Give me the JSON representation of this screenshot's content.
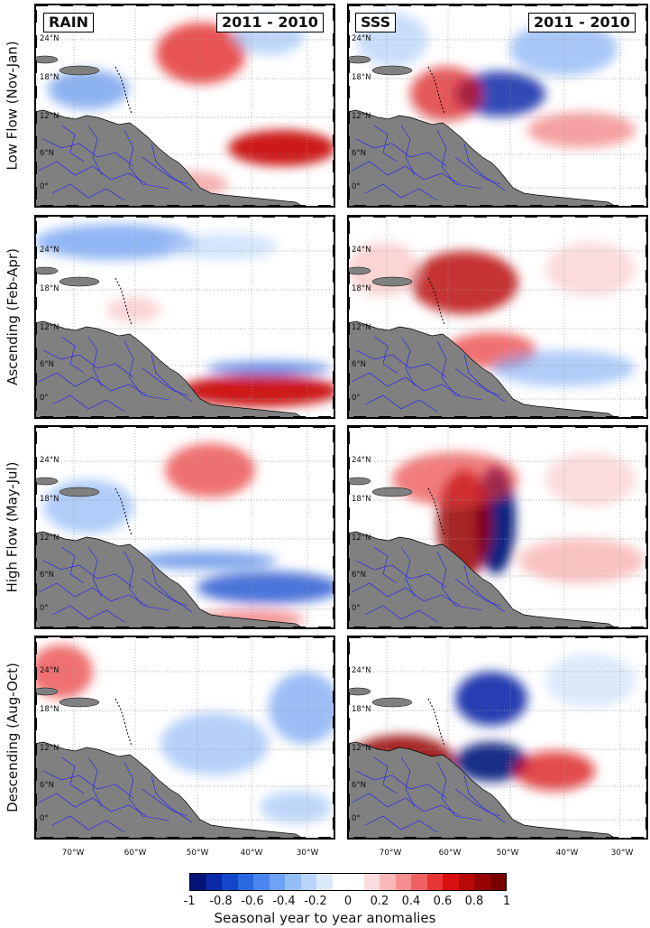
{
  "rows": [
    {
      "label": "Low Flow (Nov-Jan)"
    },
    {
      "label": "Ascending (Feb-Apr)"
    },
    {
      "label": "High Flow (May-Jul)"
    },
    {
      "label": "Descending (Aug-Oct)"
    }
  ],
  "titles": {
    "rain": "RAIN",
    "sss": "SSS",
    "period": "2011 - 2010"
  },
  "lat_labels": [
    "24°N",
    "18°N",
    "12°N",
    "6°N",
    "0°"
  ],
  "lon_labels": [
    "70°W",
    "60°W",
    "50°W",
    "40°W",
    "30°W"
  ],
  "colorbar": {
    "ticks": [
      "-1",
      "-0.8",
      "-0.6",
      "-0.4",
      "-0.2",
      "0",
      "0.2",
      "0.4",
      "0.6",
      "0.8",
      "1"
    ],
    "label": "Seasonal year to year anomalies",
    "colors": [
      "#06147a",
      "#0a2aa8",
      "#1247cc",
      "#2a68e0",
      "#4a86ee",
      "#6ea2f2",
      "#93bdf5",
      "#b8d4f8",
      "#dce9fb",
      "#ffffff",
      "#ffffff",
      "#fbdcdc",
      "#f8b8b8",
      "#f48f8f",
      "#ef6262",
      "#e83434",
      "#d80f0f",
      "#b80808",
      "#960404",
      "#7a0000"
    ]
  },
  "colors": {
    "land": "#808080",
    "rivers": "#1a1aff",
    "frame": "#000000"
  }
}
